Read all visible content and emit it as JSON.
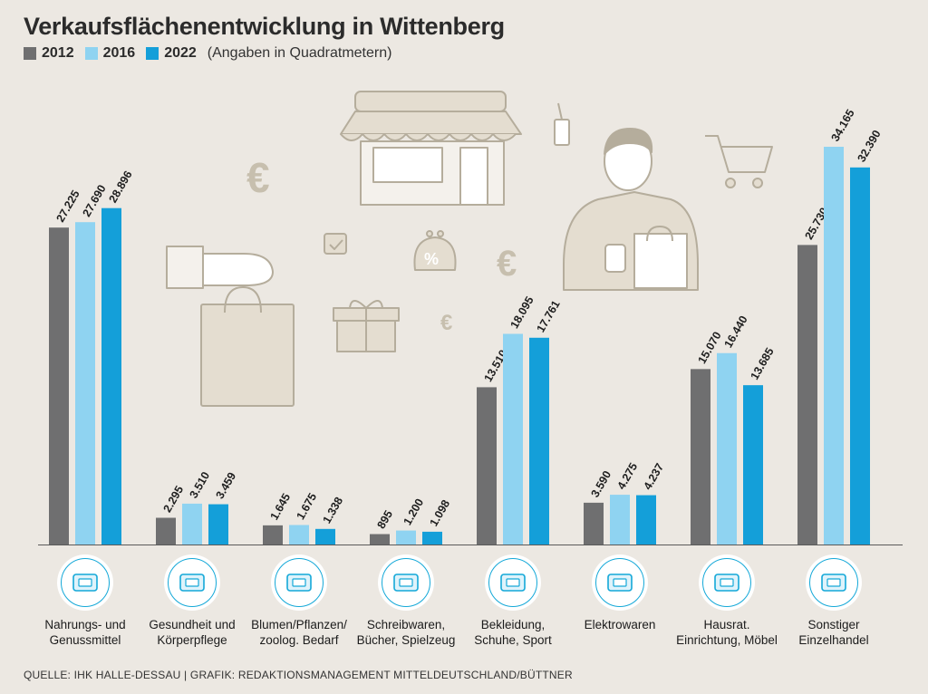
{
  "title": "Verkaufsflächenentwicklung in Wittenberg",
  "legend": {
    "items": [
      {
        "label": "2012",
        "color": "#6f6f70"
      },
      {
        "label": "2016",
        "color": "#8fd3f1"
      },
      {
        "label": "2022",
        "color": "#149fd9"
      }
    ],
    "note": "(Angaben in Quadratmetern)"
  },
  "source": "QUELLE: IHK HALLE-DESSAU | GRAFIK: REDAKTIONSMANAGEMENT MITTELDEUTSCHLAND/BÜTTNER",
  "category_icons": [
    "food-wine-icon",
    "care-products-icon",
    "flowers-icon",
    "teddy-bear-icon",
    "clothing-icon",
    "electronics-icon",
    "furniture-icon",
    "shop-icon"
  ],
  "chart_data": {
    "type": "bar",
    "title": "Verkaufsflächenentwicklung in Wittenberg",
    "subtitle": "(Angaben in Quadratmetern)",
    "categories": [
      "Nahrungs- und\nGenussmittel",
      "Gesundheit und\nKörperpflege",
      "Blumen/Pflanzen/\nzoolog. Bedarf",
      "Schreibwaren,\nBücher, Spielzeug",
      "Bekleidung,\nSchuhe, Sport",
      "Elektrowaren",
      "Hausrat.\nEinrichtung, Möbel",
      "Sonstiger\nEinzelhandel"
    ],
    "series": [
      {
        "name": "2012",
        "color": "#6f6f70",
        "values": [
          27225,
          2295,
          1645,
          895,
          13510,
          3590,
          15070,
          25730
        ],
        "labels": [
          "27.225",
          "2.295",
          "1.645",
          "895",
          "13.510",
          "3.590",
          "15.070",
          "25.730"
        ]
      },
      {
        "name": "2016",
        "color": "#8fd3f1",
        "values": [
          27690,
          3510,
          1675,
          1200,
          18095,
          4275,
          16440,
          34165
        ],
        "labels": [
          "27.690",
          "3.510",
          "1.675",
          "1.200",
          "18.095",
          "4.275",
          "16.440",
          "34.165"
        ]
      },
      {
        "name": "2022",
        "color": "#149fd9",
        "values": [
          28896,
          3459,
          1338,
          1098,
          17761,
          4237,
          13685,
          32390
        ],
        "labels": [
          "28.896",
          "3.459",
          "1.338",
          "1.098",
          "17.761",
          "4.237",
          "13.685",
          "32.390"
        ]
      }
    ],
    "ylim": [
      0,
      34165
    ],
    "xlabel": "",
    "ylabel": "",
    "grid": false,
    "legend": "top-left"
  }
}
